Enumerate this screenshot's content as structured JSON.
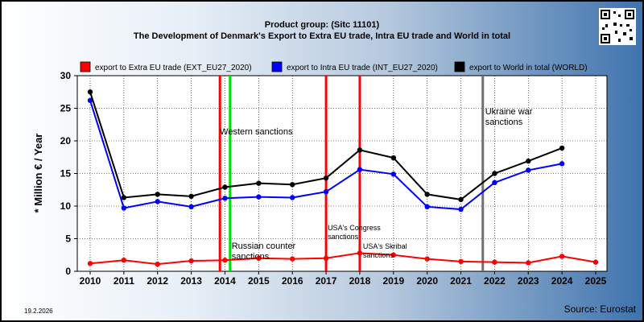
{
  "header": {
    "line1": "Product group:  (Sitc 11101)",
    "line2": "The Development of Denmark's Export to Extra EU trade, Intra EU trade and World in total"
  },
  "footer": {
    "date": "19.2.2026",
    "source": "Source: Eurostat"
  },
  "chart_data": {
    "type": "line",
    "title": "The Development of Denmark's Export to Extra EU trade, Intra EU trade and World in total",
    "subtitle": "Product group:  (Sitc 11101)",
    "xlabel": "",
    "ylabel": "* Million € / Year",
    "x": [
      2010,
      2011,
      2012,
      2013,
      2014,
      2015,
      2016,
      2017,
      2018,
      2019,
      2020,
      2021,
      2022,
      2023,
      2024,
      2025
    ],
    "xlim": [
      2010,
      2025
    ],
    "ylim": [
      0,
      30
    ],
    "yticks": [
      0,
      5,
      10,
      15,
      20,
      25,
      30
    ],
    "grid": true,
    "legend_position": "top",
    "series": [
      {
        "name": "export to Extra EU trade (EXT_EU27_2020)",
        "color": "#ff0000",
        "values": [
          1.2,
          1.7,
          1.1,
          1.6,
          1.7,
          2.0,
          1.9,
          2.0,
          2.8,
          2.5,
          1.9,
          1.5,
          1.4,
          1.3,
          2.3,
          1.4
        ]
      },
      {
        "name": "export to Intra EU trade (INT_EU27_2020)",
        "color": "#0000ff",
        "values": [
          26.2,
          9.7,
          10.7,
          9.9,
          11.2,
          11.4,
          11.3,
          12.2,
          15.6,
          14.9,
          9.9,
          9.5,
          13.6,
          15.5,
          16.5,
          null
        ]
      },
      {
        "name": "export to World in total (WORLD)",
        "color": "#000000",
        "values": [
          27.5,
          11.3,
          11.8,
          11.5,
          12.9,
          13.5,
          13.3,
          14.3,
          18.6,
          17.4,
          11.8,
          11.0,
          15.0,
          16.9,
          18.9,
          null
        ]
      }
    ],
    "annotations": [
      {
        "x": 2013.85,
        "color": "#ff0000",
        "label": "Western sanctions"
      },
      {
        "x": 2014.15,
        "color": "#00e000",
        "label": "Russian counter sanctions"
      },
      {
        "x": 2017.0,
        "color": "#ff0000",
        "label": "USA's Congress sanctions"
      },
      {
        "x": 2018.0,
        "color": "#ff0000",
        "label": "USA's Skribal sanctions"
      },
      {
        "x": 2021.65,
        "color": "#707070",
        "label": "Ukraine war sanctions"
      }
    ]
  }
}
